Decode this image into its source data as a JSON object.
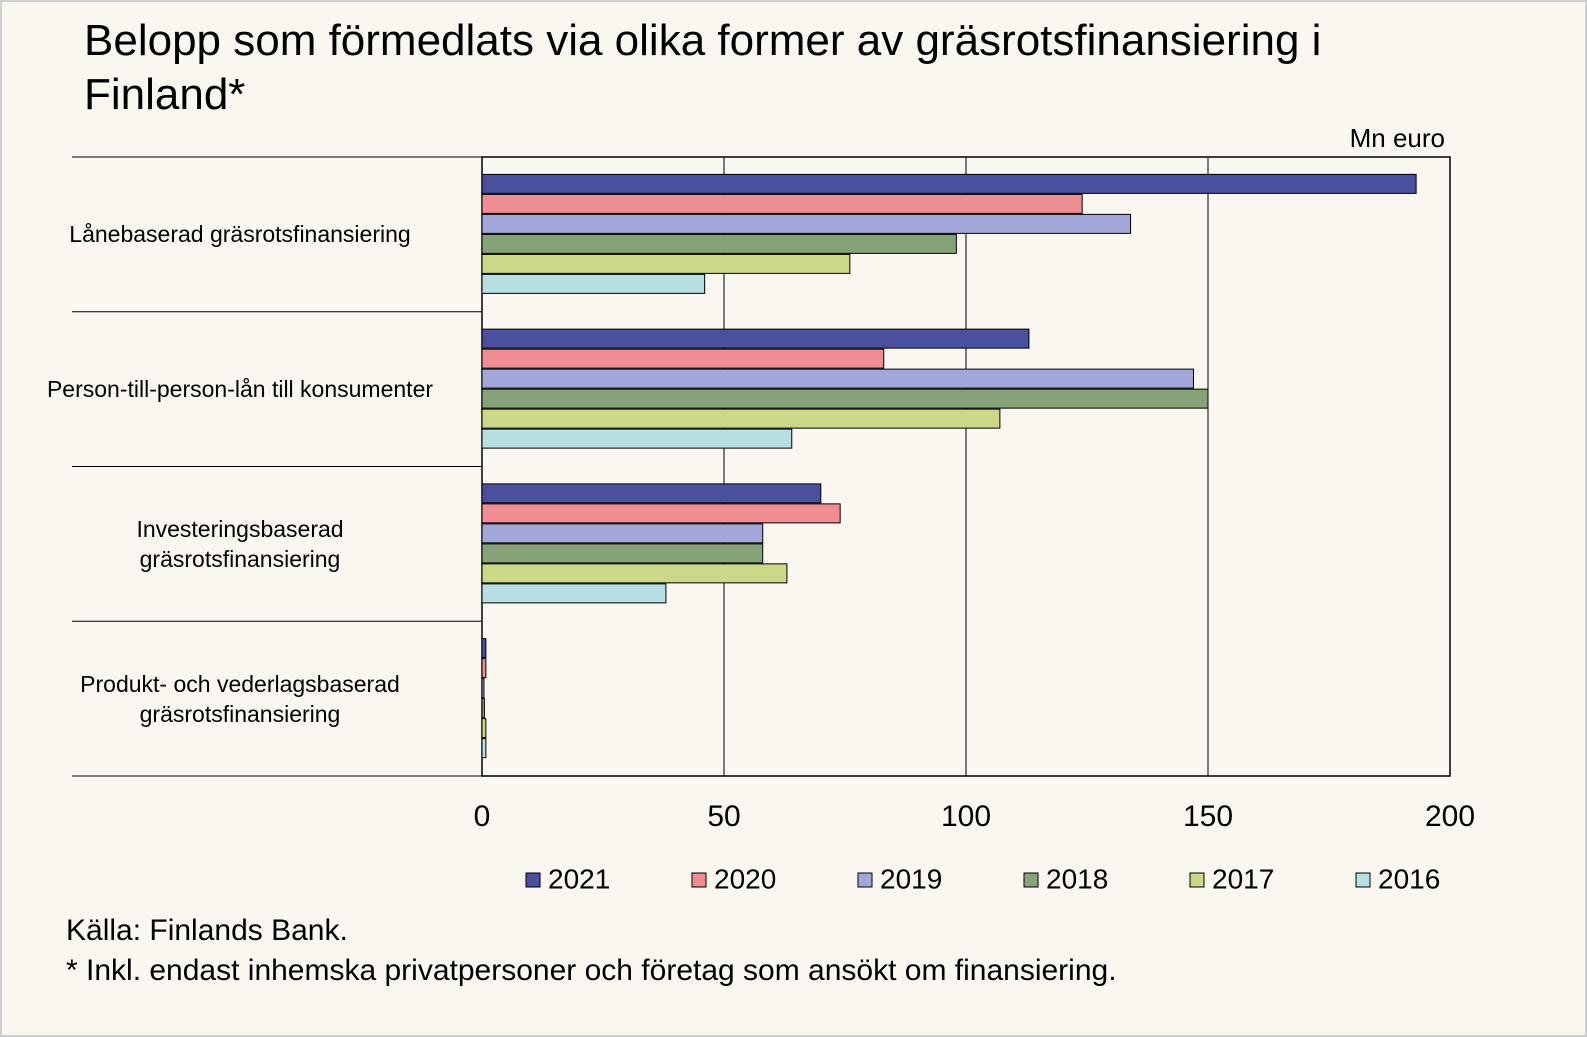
{
  "chart_data": {
    "type": "hbar",
    "title": "Belopp som förmedlats via olika former av gräsrotsfinansiering i Finland*",
    "unit_label": "Mn euro",
    "categories": [
      "Lånebaserad gräsrotsfinansiering",
      "Person-till-person-lån till konsumenter",
      "Investeringsbaserad\ngräsrotsfinansiering",
      "Produkt- och vederlagsbaserad\ngräsrotsfinansiering"
    ],
    "series": [
      {
        "name": "2021",
        "color": "#4a4f9e",
        "values": [
          193,
          113,
          70,
          0.8
        ]
      },
      {
        "name": "2020",
        "color": "#ef8d92",
        "values": [
          124,
          83,
          74,
          0.8
        ]
      },
      {
        "name": "2019",
        "color": "#a3a6d8",
        "values": [
          134,
          147,
          58,
          0.4
        ]
      },
      {
        "name": "2018",
        "color": "#86a279",
        "values": [
          98,
          150,
          58,
          0.5
        ]
      },
      {
        "name": "2017",
        "color": "#cad887",
        "values": [
          76,
          107,
          63,
          0.8
        ]
      },
      {
        "name": "2016",
        "color": "#b8e0e2",
        "values": [
          46,
          64,
          38,
          0.8
        ]
      }
    ],
    "xlim": [
      0,
      200
    ],
    "xticks": [
      0,
      50,
      100,
      150,
      200
    ],
    "grid": true,
    "source": "Källa: Finlands Bank.",
    "note": "* Inkl. endast inhemska privatpersoner och företag som ansökt om finansiering."
  }
}
